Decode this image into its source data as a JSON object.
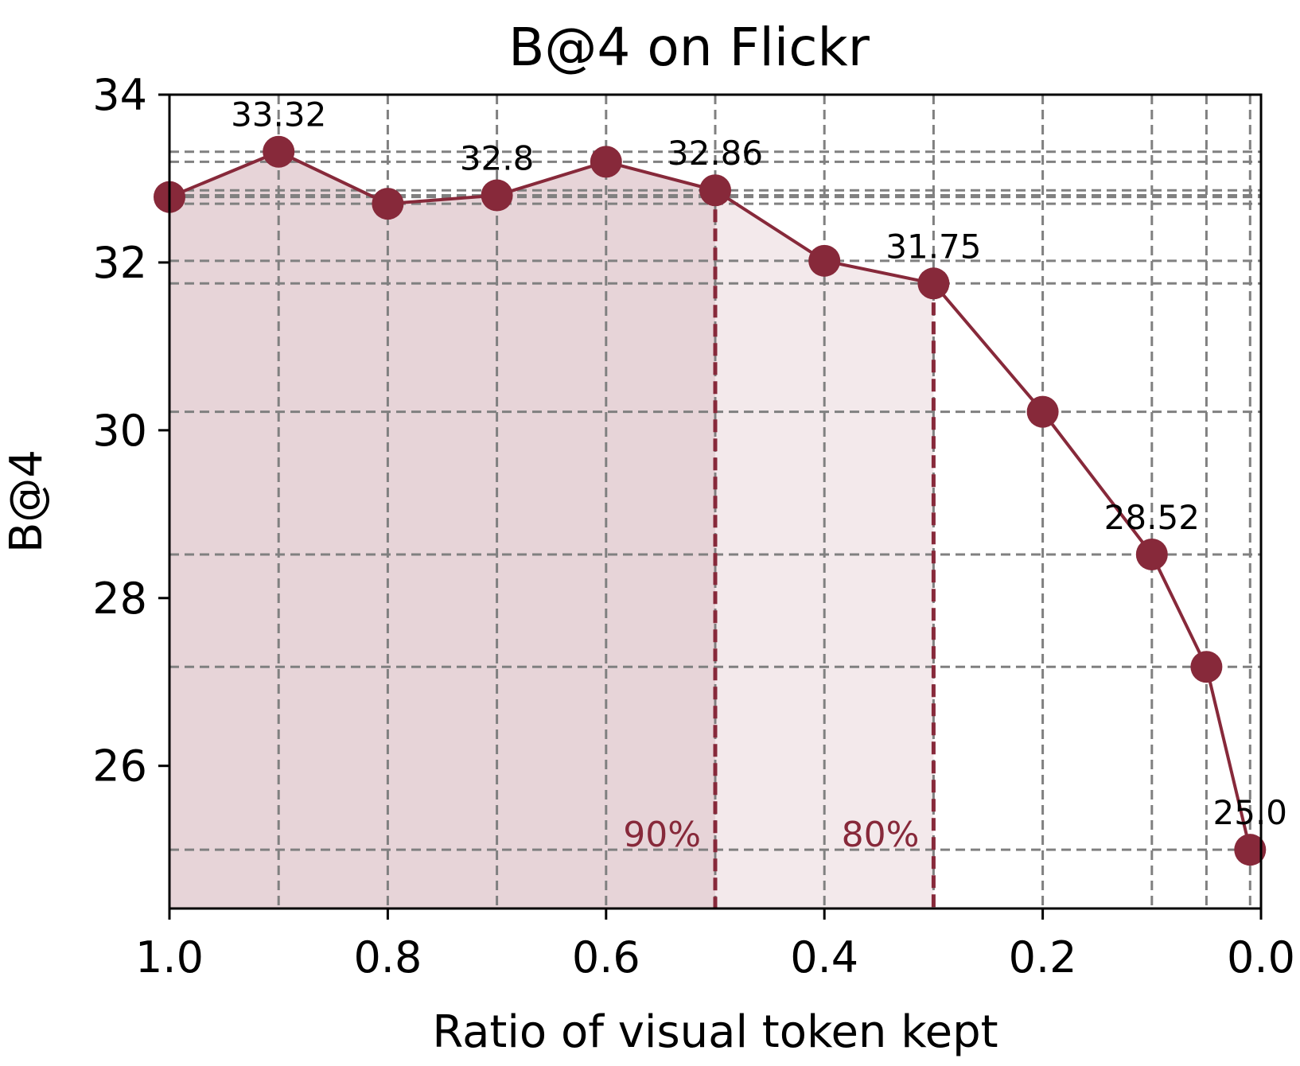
{
  "chart_data": {
    "type": "line",
    "title": "B@4 on Flickr",
    "xlabel": "Ratio of visual token kept",
    "ylabel": "B@4",
    "xlim": [
      1.0,
      0.0
    ],
    "ylim": [
      24.3,
      34
    ],
    "x_reversed": true,
    "grid": true,
    "x": [
      1.0,
      0.9,
      0.8,
      0.7,
      0.6,
      0.5,
      0.4,
      0.3,
      0.2,
      0.1,
      0.05,
      0.01
    ],
    "y": [
      32.78,
      33.32,
      32.7,
      32.8,
      33.2,
      32.86,
      32.02,
      31.75,
      30.22,
      28.52,
      27.18,
      25.0
    ],
    "xticks": [
      1.0,
      0.8,
      0.6,
      0.4,
      0.2,
      0.0
    ],
    "xtick_labels": [
      "1.0",
      "0.8",
      "0.6",
      "0.4",
      "0.2",
      "0.0"
    ],
    "yticks": [
      26,
      28,
      30,
      32,
      34
    ],
    "ytick_labels": [
      "26",
      "28",
      "30",
      "32",
      "34"
    ],
    "data_labels": [
      {
        "x": 0.9,
        "y": 33.32,
        "text": "33.32"
      },
      {
        "x": 0.7,
        "y": 32.8,
        "text": "32.8"
      },
      {
        "x": 0.5,
        "y": 32.86,
        "text": "32.86"
      },
      {
        "x": 0.3,
        "y": 31.75,
        "text": "31.75"
      },
      {
        "x": 0.1,
        "y": 28.52,
        "text": "28.52"
      },
      {
        "x": 0.01,
        "y": 25.0,
        "text": "25.0"
      }
    ],
    "regions": [
      {
        "from_x": 1.0,
        "to_x": 0.5,
        "label": "90%",
        "opacity": 0.2
      },
      {
        "from_x": 0.5,
        "to_x": 0.3,
        "label": "80%",
        "opacity": 0.1
      }
    ],
    "colors": {
      "line": "#87293a",
      "fill": "#87293a",
      "grid": "#808080"
    }
  }
}
